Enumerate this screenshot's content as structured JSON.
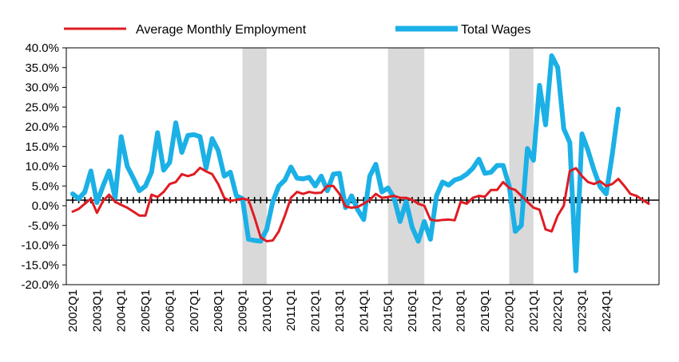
{
  "chart_data": {
    "type": "line",
    "title": "",
    "xlabel": "",
    "ylabel": "",
    "ylim": [
      -20,
      40
    ],
    "y_ticks": [
      40,
      35,
      30,
      25,
      20,
      15,
      10,
      5,
      0,
      -5,
      -10,
      -15,
      -20
    ],
    "y_tick_labels": [
      "40.0%",
      "35.0%",
      "30.0%",
      "25.0%",
      "20.0%",
      "15.0%",
      "10.0%",
      "5.0%",
      "0.0%",
      "-5.0%",
      "-10.0%",
      "-15.0%",
      "-20.0%"
    ],
    "x_tick_labels": [
      "2002Q1",
      "2003Q1",
      "2004Q1",
      "2005Q1",
      "2006Q1",
      "2007Q1",
      "2008Q1",
      "2009Q1",
      "2010Q1",
      "2011Q1",
      "2012Q1",
      "2013Q1",
      "2014Q1",
      "2015Q1",
      "2016Q1",
      "2017Q1",
      "2018Q1",
      "2019Q1",
      "2020Q1",
      "2021Q1",
      "2022Q1",
      "2023Q1",
      "2024Q1"
    ],
    "grid": false,
    "legend": "top",
    "recession_shading": [
      {
        "start": "2009Q1",
        "end": "2010Q1"
      },
      {
        "start": "2015Q1",
        "end": "2016Q3"
      },
      {
        "start": "2020Q1",
        "end": "2021Q1"
      }
    ],
    "x_start": "2002Q1",
    "series": [
      {
        "name": "Average Monthly Employment",
        "color": "#e01b22",
        "values": [
          -1.5,
          -0.8,
          0.5,
          1.8,
          -1.8,
          1.2,
          2.8,
          1.0,
          0.2,
          -0.5,
          -1.5,
          -2.5,
          -2.5,
          2.8,
          2.2,
          3.5,
          5.5,
          6.0,
          8.0,
          7.5,
          8.0,
          9.6,
          8.7,
          8.0,
          5.5,
          2.0,
          1.2,
          1.5,
          1.8,
          1.5,
          -3.0,
          -8.0,
          -9.0,
          -8.8,
          -6.5,
          -2.5,
          2.0,
          3.5,
          3.0,
          3.5,
          3.2,
          3.3,
          5.0,
          5.0,
          3.0,
          -0.2,
          -0.5,
          -0.3,
          0.5,
          1.5,
          3.0,
          2.0,
          2.2,
          2.5,
          2.0,
          2.0,
          1.5,
          0.5,
          0.0,
          -3.5,
          -3.8,
          -3.6,
          -3.5,
          -3.7,
          1.0,
          0.5,
          2.0,
          2.5,
          2.3,
          4.0,
          4.0,
          6.0,
          4.5,
          4.0,
          2.5,
          1.0,
          -0.5,
          -1.0,
          -6.0,
          -6.5,
          -2.5,
          0.0,
          8.8,
          9.5,
          7.5,
          6.0,
          5.5,
          6.2,
          5.0,
          5.5,
          6.8,
          5.0,
          3.0,
          2.5,
          1.5,
          0.5
        ]
      },
      {
        "name": "Total Wages",
        "color": "#1bb0e6",
        "values": [
          3.0,
          1.8,
          3.5,
          8.8,
          0.8,
          5.0,
          8.8,
          2.0,
          17.5,
          10.0,
          7.0,
          3.8,
          5.0,
          8.5,
          18.5,
          9.0,
          11.0,
          21.0,
          13.5,
          17.8,
          18.0,
          17.5,
          9.5,
          17.0,
          14.0,
          7.5,
          8.5,
          2.5,
          1.8,
          -8.5,
          -8.8,
          -9.0,
          -6.0,
          1.0,
          5.0,
          6.5,
          9.8,
          7.0,
          6.8,
          7.2,
          5.0,
          7.5,
          3.8,
          8.0,
          8.2,
          -0.5,
          2.5,
          -1.0,
          -3.5,
          7.5,
          10.5,
          3.5,
          4.5,
          2.0,
          -4.0,
          1.0,
          -5.5,
          -9.0,
          -4.0,
          -8.5,
          2.5,
          6.0,
          5.2,
          6.5,
          7.0,
          8.0,
          9.5,
          11.8,
          8.2,
          8.5,
          10.2,
          10.2,
          5.0,
          -6.5,
          -5.0,
          14.5,
          11.5,
          30.5,
          20.5,
          38.0,
          35.0,
          19.5,
          16.0,
          -16.5,
          18.2,
          14.0,
          9.0,
          4.8,
          3.0,
          13.0,
          24.5
        ]
      }
    ]
  }
}
